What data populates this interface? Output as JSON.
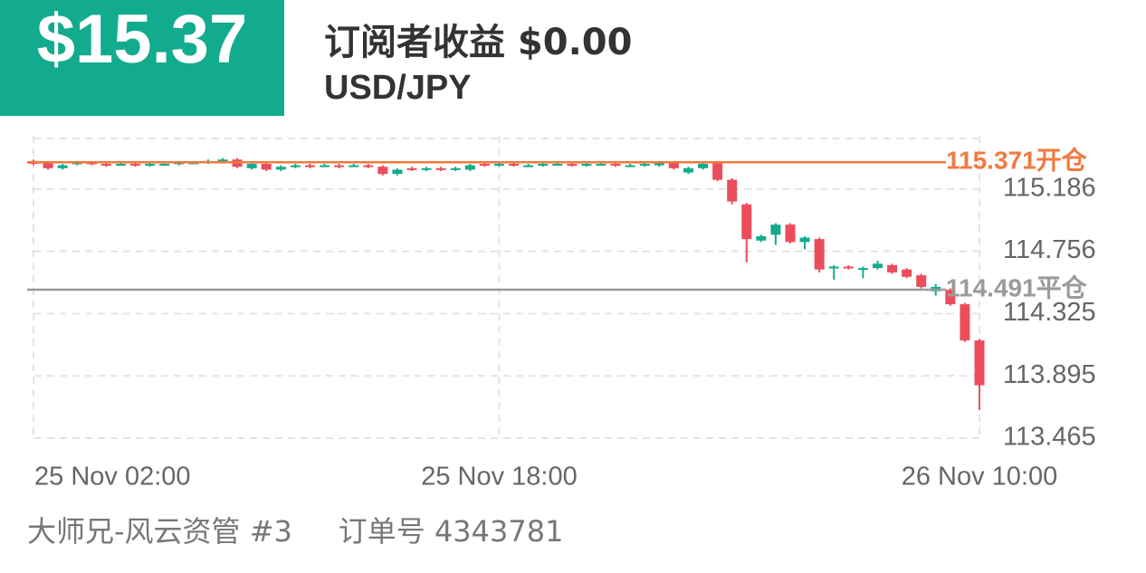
{
  "header": {
    "amount": "$15.37",
    "title": "订阅者收益 $0.00",
    "pair": "USD/JPY"
  },
  "footer": {
    "account": "大师兄-风云资管 #3",
    "order": "订单号 4343781"
  },
  "chart_data": {
    "type": "candlestick",
    "categories": [
      "25 Nov 02:00",
      null,
      null,
      null,
      null,
      null,
      null,
      null,
      null,
      null,
      null,
      null,
      null,
      null,
      null,
      null,
      null,
      null,
      null,
      null,
      null,
      null,
      null,
      null,
      null,
      null,
      null,
      null,
      null,
      null,
      null,
      null,
      "25 Nov 18:00",
      null,
      null,
      null,
      null,
      null,
      null,
      null,
      null,
      null,
      null,
      null,
      null,
      null,
      null,
      null,
      null,
      null,
      null,
      null,
      null,
      null,
      null,
      null,
      null,
      null,
      null,
      null,
      null,
      null,
      null,
      null,
      null,
      "26 Nov 10:00"
    ],
    "open": [
      115.38,
      115.37,
      115.33,
      115.36,
      115.37,
      115.36,
      115.36,
      115.36,
      115.35,
      115.36,
      115.36,
      115.37,
      115.37,
      115.38,
      115.39,
      115.33,
      115.36,
      115.32,
      115.34,
      115.35,
      115.35,
      115.35,
      115.35,
      115.35,
      115.34,
      115.29,
      115.33,
      115.32,
      115.33,
      115.32,
      115.32,
      115.36,
      115.35,
      115.36,
      115.35,
      115.35,
      115.36,
      115.36,
      115.35,
      115.36,
      115.36,
      115.35,
      115.35,
      115.35,
      115.37,
      115.3,
      115.33,
      115.37,
      115.25,
      115.08,
      114.83,
      114.87,
      114.94,
      114.82,
      114.84,
      114.64,
      114.65,
      114.63,
      114.64,
      114.66,
      114.63,
      114.59,
      114.48,
      114.49,
      114.39,
      114.14
    ],
    "high": [
      115.39,
      115.38,
      115.36,
      115.38,
      115.38,
      115.37,
      115.37,
      115.37,
      115.37,
      115.37,
      115.38,
      115.38,
      115.39,
      115.4,
      115.4,
      115.37,
      115.37,
      115.35,
      115.36,
      115.36,
      115.36,
      115.36,
      115.36,
      115.36,
      115.35,
      115.33,
      115.34,
      115.34,
      115.34,
      115.34,
      115.36,
      115.37,
      115.37,
      115.37,
      115.36,
      115.37,
      115.37,
      115.37,
      115.37,
      115.37,
      115.37,
      115.36,
      115.37,
      115.38,
      115.38,
      115.34,
      115.37,
      115.38,
      115.26,
      115.09,
      114.87,
      114.95,
      114.95,
      114.86,
      114.85,
      114.66,
      114.66,
      114.65,
      114.69,
      114.67,
      114.64,
      114.6,
      114.53,
      114.5,
      114.4,
      114.15
    ],
    "low": [
      115.35,
      115.32,
      115.32,
      115.35,
      115.35,
      115.34,
      115.35,
      115.34,
      115.34,
      115.35,
      115.35,
      115.36,
      115.36,
      115.37,
      115.33,
      115.32,
      115.31,
      115.31,
      115.33,
      115.33,
      115.34,
      115.33,
      115.34,
      115.33,
      115.28,
      115.28,
      115.31,
      115.31,
      115.31,
      115.31,
      115.31,
      115.34,
      115.34,
      115.34,
      115.34,
      115.34,
      115.35,
      115.34,
      115.34,
      115.35,
      115.34,
      115.34,
      115.34,
      115.34,
      115.32,
      115.29,
      115.32,
      115.24,
      115.08,
      114.68,
      114.82,
      114.8,
      114.81,
      114.77,
      114.61,
      114.56,
      114.63,
      114.57,
      114.63,
      114.6,
      114.57,
      114.5,
      114.45,
      114.38,
      114.13,
      113.66
    ],
    "close": [
      115.36,
      115.33,
      115.35,
      115.37,
      115.36,
      115.35,
      115.36,
      115.35,
      115.36,
      115.36,
      115.37,
      115.37,
      115.38,
      115.39,
      115.34,
      115.36,
      115.32,
      115.34,
      115.35,
      115.34,
      115.35,
      115.34,
      115.35,
      115.34,
      115.29,
      115.32,
      115.32,
      115.33,
      115.32,
      115.33,
      115.35,
      115.35,
      115.36,
      115.35,
      115.35,
      115.36,
      115.36,
      115.35,
      115.36,
      115.36,
      115.35,
      115.35,
      115.36,
      115.37,
      115.33,
      115.33,
      115.36,
      115.25,
      115.1,
      114.84,
      114.86,
      114.94,
      114.82,
      114.85,
      114.63,
      114.65,
      114.64,
      114.64,
      114.67,
      114.61,
      114.58,
      114.51,
      114.51,
      114.39,
      114.14,
      113.83
    ],
    "up_color": "#13ab8d",
    "down_color": "#ec4d5c",
    "lines": [
      {
        "value": 115.371,
        "label": "115.371开仓",
        "color": "#f2793f"
      },
      {
        "value": 114.491,
        "label": "114.491平仓",
        "color": "#9a9a9a"
      }
    ],
    "ylim": [
      113.465,
      115.554
    ],
    "yticks": [
      115.186,
      114.756,
      114.325,
      113.895,
      113.465
    ],
    "grid": true
  }
}
